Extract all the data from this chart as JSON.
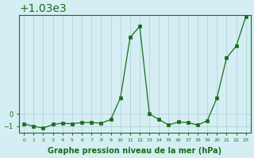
{
  "hours": [
    0,
    1,
    2,
    3,
    4,
    5,
    6,
    7,
    8,
    9,
    10,
    11,
    12,
    13,
    14,
    15,
    16,
    17,
    18,
    19,
    20,
    21,
    22,
    23
  ],
  "pressure": [
    1029.2,
    1029.0,
    1028.85,
    1029.15,
    1029.25,
    1029.2,
    1029.3,
    1029.3,
    1029.25,
    1029.55,
    1031.3,
    1036.2,
    1037.1,
    1030.0,
    1029.55,
    1029.1,
    1029.35,
    1029.3,
    1029.1,
    1029.45,
    1031.3,
    1034.55,
    1035.5,
    1037.9
  ],
  "line_color": "#1a6e1a",
  "marker_color": "#1a6e1a",
  "bg_color": "#d4eef4",
  "grid_color": "#b0ccd4",
  "xlabel": "Graphe pression niveau de la mer (hPa)",
  "ylim": [
    1028.5,
    1038.0
  ],
  "yticks": [
    1029,
    1030
  ],
  "xtick_labels": [
    "0",
    "1",
    "2",
    "3",
    "4",
    "5",
    "6",
    "7",
    "8",
    "9",
    "10",
    "11",
    "12",
    "13",
    "14",
    "15",
    "16",
    "17",
    "18",
    "19",
    "20",
    "21",
    "22",
    "23"
  ],
  "title_color": "#1a6e1a",
  "xlabel_fontsize": 7,
  "xlabel_bold": true
}
